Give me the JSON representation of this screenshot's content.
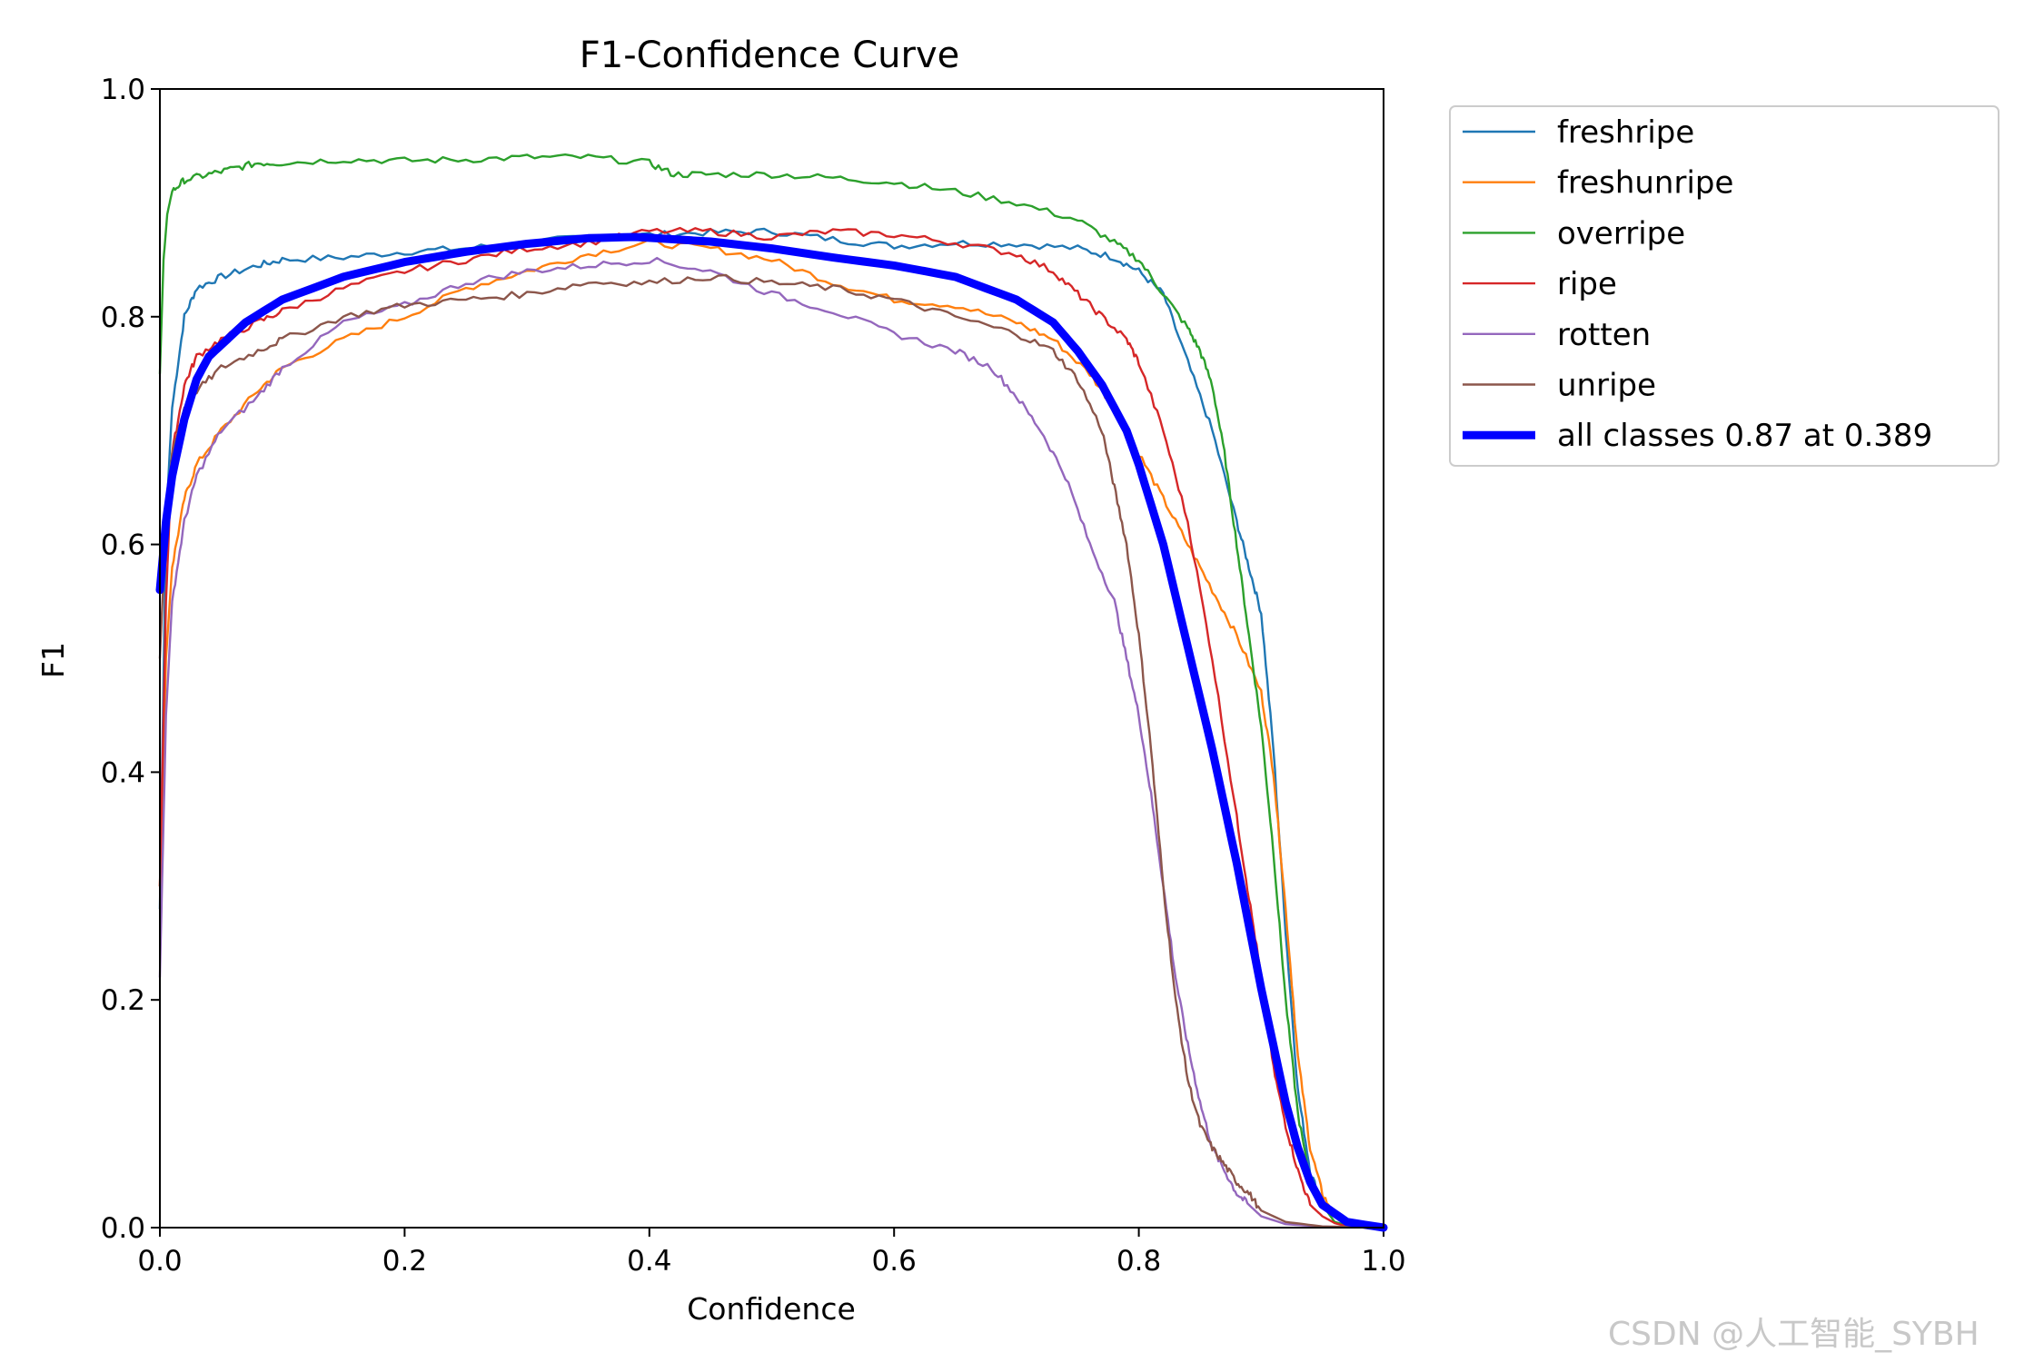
{
  "chart_data": {
    "type": "line",
    "title": "F1-Confidence Curve",
    "xlabel": "Confidence",
    "ylabel": "F1",
    "xlim": [
      0,
      1
    ],
    "ylim": [
      0,
      1
    ],
    "xticks": [
      "0.0",
      "0.2",
      "0.4",
      "0.6",
      "0.8",
      "1.0"
    ],
    "yticks": [
      "0.0",
      "0.2",
      "0.4",
      "0.6",
      "0.8",
      "1.0"
    ],
    "legend_position": "outside-top-right",
    "series": [
      {
        "name": "freshripe",
        "color": "#1f77b4",
        "x": [
          0,
          0.005,
          0.01,
          0.02,
          0.03,
          0.05,
          0.08,
          0.1,
          0.15,
          0.2,
          0.25,
          0.3,
          0.35,
          0.4,
          0.45,
          0.5,
          0.55,
          0.6,
          0.65,
          0.7,
          0.75,
          0.78,
          0.8,
          0.82,
          0.84,
          0.86,
          0.88,
          0.89,
          0.9,
          0.91,
          0.92,
          0.93,
          0.94,
          0.95,
          0.96,
          0.97,
          0.98,
          1.0
        ],
        "y": [
          0.28,
          0.62,
          0.72,
          0.8,
          0.825,
          0.835,
          0.845,
          0.85,
          0.852,
          0.857,
          0.86,
          0.865,
          0.87,
          0.872,
          0.874,
          0.875,
          0.868,
          0.862,
          0.865,
          0.864,
          0.86,
          0.852,
          0.84,
          0.82,
          0.76,
          0.7,
          0.62,
          0.58,
          0.54,
          0.42,
          0.26,
          0.12,
          0.05,
          0.02,
          0.01,
          0.004,
          0.001,
          0
        ]
      },
      {
        "name": "freshunripe",
        "color": "#ff7f0e",
        "x": [
          0,
          0.005,
          0.01,
          0.02,
          0.03,
          0.05,
          0.08,
          0.1,
          0.15,
          0.2,
          0.25,
          0.3,
          0.35,
          0.4,
          0.45,
          0.5,
          0.55,
          0.6,
          0.65,
          0.7,
          0.73,
          0.76,
          0.78,
          0.8,
          0.82,
          0.84,
          0.86,
          0.88,
          0.9,
          0.91,
          0.92,
          0.93,
          0.94,
          0.95,
          0.96,
          0.97,
          1.0
        ],
        "y": [
          0.3,
          0.5,
          0.58,
          0.64,
          0.67,
          0.7,
          0.735,
          0.755,
          0.78,
          0.8,
          0.825,
          0.84,
          0.855,
          0.865,
          0.86,
          0.85,
          0.83,
          0.815,
          0.81,
          0.795,
          0.78,
          0.75,
          0.72,
          0.68,
          0.64,
          0.6,
          0.56,
          0.52,
          0.47,
          0.4,
          0.28,
          0.15,
          0.07,
          0.03,
          0.01,
          0.003,
          0
        ]
      },
      {
        "name": "overripe",
        "color": "#2ca02c",
        "x": [
          0,
          0.003,
          0.006,
          0.01,
          0.02,
          0.04,
          0.06,
          0.08,
          0.1,
          0.15,
          0.2,
          0.25,
          0.3,
          0.35,
          0.4,
          0.42,
          0.45,
          0.5,
          0.55,
          0.6,
          0.65,
          0.7,
          0.75,
          0.78,
          0.8,
          0.82,
          0.84,
          0.85,
          0.86,
          0.87,
          0.88,
          0.89,
          0.9,
          0.91,
          0.92,
          0.93,
          0.94,
          0.95,
          0.96,
          0.97,
          1.0
        ],
        "y": [
          0.75,
          0.85,
          0.89,
          0.91,
          0.92,
          0.925,
          0.93,
          0.935,
          0.935,
          0.938,
          0.937,
          0.938,
          0.94,
          0.94,
          0.935,
          0.925,
          0.925,
          0.925,
          0.922,
          0.918,
          0.91,
          0.9,
          0.885,
          0.865,
          0.85,
          0.82,
          0.79,
          0.77,
          0.74,
          0.68,
          0.6,
          0.52,
          0.44,
          0.33,
          0.2,
          0.1,
          0.04,
          0.02,
          0.005,
          0.002,
          0
        ]
      },
      {
        "name": "ripe",
        "color": "#d62728",
        "x": [
          0,
          0.005,
          0.01,
          0.02,
          0.03,
          0.05,
          0.08,
          0.1,
          0.15,
          0.2,
          0.25,
          0.3,
          0.35,
          0.4,
          0.45,
          0.5,
          0.55,
          0.6,
          0.65,
          0.7,
          0.73,
          0.75,
          0.77,
          0.79,
          0.8,
          0.82,
          0.84,
          0.86,
          0.88,
          0.89,
          0.9,
          0.91,
          0.92,
          0.93,
          0.94,
          0.95,
          0.96,
          0.97,
          1.0
        ],
        "y": [
          0.3,
          0.55,
          0.68,
          0.74,
          0.765,
          0.78,
          0.795,
          0.805,
          0.825,
          0.84,
          0.85,
          0.86,
          0.865,
          0.875,
          0.875,
          0.87,
          0.875,
          0.872,
          0.865,
          0.855,
          0.84,
          0.82,
          0.8,
          0.78,
          0.76,
          0.7,
          0.62,
          0.5,
          0.36,
          0.29,
          0.22,
          0.14,
          0.09,
          0.05,
          0.02,
          0.01,
          0.004,
          0.001,
          0
        ]
      },
      {
        "name": "rotten",
        "color": "#9467bd",
        "x": [
          0,
          0.005,
          0.01,
          0.02,
          0.03,
          0.05,
          0.08,
          0.1,
          0.15,
          0.2,
          0.25,
          0.3,
          0.35,
          0.4,
          0.45,
          0.5,
          0.55,
          0.6,
          0.65,
          0.68,
          0.7,
          0.72,
          0.74,
          0.76,
          0.78,
          0.79,
          0.8,
          0.81,
          0.82,
          0.83,
          0.84,
          0.85,
          0.86,
          0.87,
          0.88,
          0.89,
          0.9,
          0.92,
          0.95,
          1.0
        ],
        "y": [
          0.22,
          0.45,
          0.55,
          0.62,
          0.66,
          0.7,
          0.73,
          0.755,
          0.795,
          0.81,
          0.83,
          0.84,
          0.845,
          0.85,
          0.84,
          0.82,
          0.805,
          0.785,
          0.77,
          0.755,
          0.73,
          0.7,
          0.66,
          0.6,
          0.55,
          0.5,
          0.45,
          0.38,
          0.3,
          0.22,
          0.16,
          0.11,
          0.07,
          0.05,
          0.03,
          0.02,
          0.01,
          0.003,
          0.001,
          0
        ]
      },
      {
        "name": "unripe",
        "color": "#8c564b",
        "x": [
          0,
          0.005,
          0.01,
          0.02,
          0.03,
          0.05,
          0.08,
          0.1,
          0.15,
          0.2,
          0.25,
          0.3,
          0.35,
          0.4,
          0.45,
          0.5,
          0.55,
          0.6,
          0.65,
          0.7,
          0.73,
          0.75,
          0.77,
          0.78,
          0.79,
          0.8,
          0.81,
          0.82,
          0.83,
          0.84,
          0.85,
          0.86,
          0.87,
          0.88,
          0.89,
          0.9,
          0.92,
          0.95,
          1.0
        ],
        "y": [
          0.5,
          0.62,
          0.68,
          0.72,
          0.735,
          0.755,
          0.77,
          0.78,
          0.8,
          0.81,
          0.815,
          0.82,
          0.83,
          0.83,
          0.835,
          0.83,
          0.825,
          0.815,
          0.8,
          0.785,
          0.77,
          0.745,
          0.7,
          0.65,
          0.6,
          0.52,
          0.42,
          0.3,
          0.2,
          0.13,
          0.09,
          0.07,
          0.055,
          0.04,
          0.03,
          0.015,
          0.005,
          0.001,
          0
        ]
      },
      {
        "name": "all classes 0.87 at 0.389",
        "color": "#0000ff",
        "bold": true,
        "x": [
          0,
          0.005,
          0.01,
          0.02,
          0.03,
          0.04,
          0.05,
          0.07,
          0.1,
          0.15,
          0.2,
          0.25,
          0.3,
          0.35,
          0.389,
          0.45,
          0.5,
          0.55,
          0.6,
          0.65,
          0.7,
          0.73,
          0.75,
          0.77,
          0.79,
          0.8,
          0.82,
          0.84,
          0.86,
          0.88,
          0.9,
          0.92,
          0.93,
          0.94,
          0.95,
          0.97,
          1.0
        ],
        "y": [
          0.56,
          0.62,
          0.66,
          0.71,
          0.745,
          0.765,
          0.775,
          0.795,
          0.815,
          0.835,
          0.848,
          0.857,
          0.864,
          0.869,
          0.87,
          0.866,
          0.86,
          0.852,
          0.845,
          0.835,
          0.815,
          0.795,
          0.77,
          0.74,
          0.7,
          0.67,
          0.6,
          0.51,
          0.42,
          0.32,
          0.21,
          0.11,
          0.07,
          0.04,
          0.02,
          0.005,
          0
        ]
      }
    ]
  },
  "watermark": "CSDN @人工智能_SYBH"
}
